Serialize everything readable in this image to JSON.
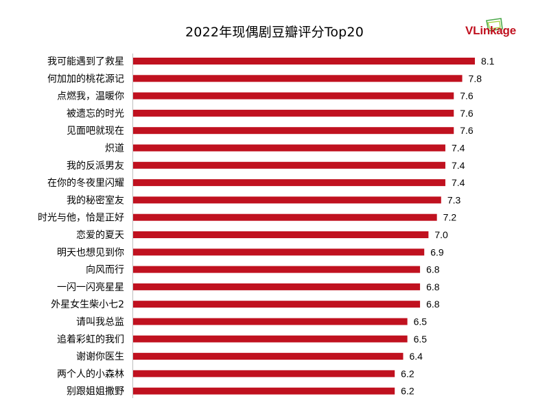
{
  "header": {
    "title": "2022年现偶剧豆瓣评分Top20",
    "logo_text_v": "V",
    "logo_text_rest": "Linkage"
  },
  "colors": {
    "bar": "#c0111f",
    "axis": "#bdbdbd"
  },
  "chart_data": {
    "type": "bar",
    "orientation": "horizontal",
    "title": "2022年现偶剧豆瓣评分Top20",
    "xlabel": "",
    "ylabel": "",
    "categories": [
      "我可能遇到了救星",
      "何加加的桃花源记",
      "点燃我，温暖你",
      "被遗忘的时光",
      "见面吧就现在",
      "炽道",
      "我的反派男友",
      "在你的冬夜里闪耀",
      "我的秘密室友",
      "时光与他，恰是正好",
      "恋爱的夏天",
      "明天也想见到你",
      "向风而行",
      "一闪一闪亮星星",
      "外星女生柴小七2",
      "请叫我总监",
      "追着彩虹的我们",
      "谢谢你医生",
      "两个人的小森林",
      "别跟姐姐撒野"
    ],
    "values": [
      8.1,
      7.8,
      7.6,
      7.6,
      7.6,
      7.4,
      7.4,
      7.4,
      7.3,
      7.2,
      7.0,
      6.9,
      6.8,
      6.8,
      6.8,
      6.5,
      6.5,
      6.4,
      6.2,
      6.2
    ],
    "value_labels": [
      "8.1",
      "7.8",
      "7.6",
      "7.6",
      "7.6",
      "7.4",
      "7.4",
      "7.4",
      "7.3",
      "7.2",
      "7.0",
      "6.9",
      "6.8",
      "6.8",
      "6.8",
      "6.5",
      "6.5",
      "6.4",
      "6.2",
      "6.2"
    ],
    "xlim": [
      0,
      8.1
    ],
    "grid": false,
    "legend": "none"
  }
}
